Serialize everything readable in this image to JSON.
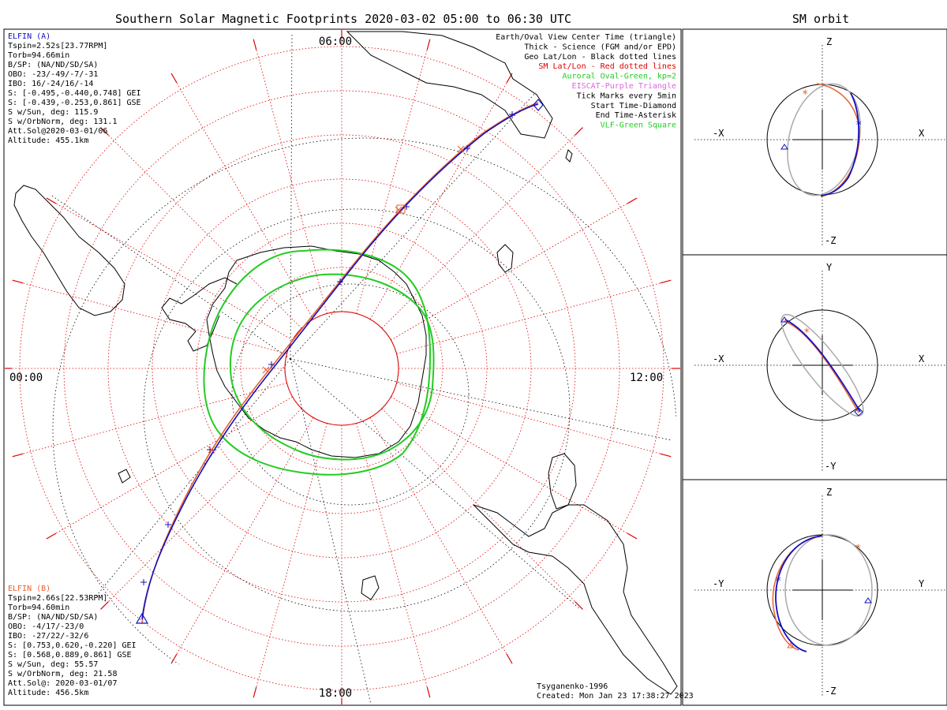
{
  "title": "Southern Solar Magnetic Footprints 2020-03-02 05:00 to 06:30 UTC",
  "orbit_title": "SM orbit",
  "map": {
    "time_labels": {
      "top": "06:00",
      "left": "00:00",
      "right": "12:00",
      "bottom": "18:00"
    },
    "legend": [
      {
        "text": "Earth/Oval View Center Time (triangle)",
        "color": "#000000"
      },
      {
        "text": "Thick - Science (FGM and/or EPD)",
        "color": "#000000"
      },
      {
        "text": "Geo Lat/Lon - Black dotted lines",
        "color": "#000000"
      },
      {
        "text": "SM Lat/Lon - Red dotted lines",
        "color": "#e00000"
      },
      {
        "text": "Auroral Oval-Green, kp=2",
        "color": "#22cc22"
      },
      {
        "text": "EISCAT-Purple Triangle",
        "color": "#dd66dd"
      },
      {
        "text": "Tick Marks every 5min",
        "color": "#000000"
      },
      {
        "text": "Start Time-Diamond",
        "color": "#000000"
      },
      {
        "text": "End Time-Asterisk",
        "color": "#000000"
      },
      {
        "text": "VLF-Green Square",
        "color": "#22cc22"
      }
    ],
    "probe_a": {
      "title": "ELFIN (A)",
      "color": "#1010c0",
      "lines": [
        "Tspin=2.52s[23.77RPM]",
        "Torb=94.66min",
        "B/SP: (NA/ND/SD/SA)",
        "OBO: -23/-49/-7/-31",
        "IBO: 16/-24/16/-14",
        "S: [-0.495,-0.440,0.748] GEI",
        "S: [-0.439,-0.253,0.861] GSE",
        "S w/Sun, deg: 115.9",
        "S w/OrbNorm, deg: 131.1",
        "Att.Sol@2020-03-01/06",
        "Altitude: 455.1km"
      ]
    },
    "probe_b": {
      "title": "ELFIN (B)",
      "color": "#e86030",
      "lines": [
        "Tspin=2.66s[22.53RPM]",
        "Torb=94.60min",
        "B/SP: (NA/ND/SD/SA)",
        "OBO: -4/17/-23/0",
        "IBO: -27/22/-32/6",
        "S: [0.753,0.620,-0.220] GEI",
        "S: [0.568,0.889,0.861] GSE",
        "S w/Sun, deg: 55.57",
        "S w/OrbNorm, deg: 21.58",
        "Att.Sol@: 2020-03-01/07",
        "Altitude: 456.5km"
      ]
    },
    "credits": [
      "Tsyganenko-1996",
      "Created: Mon Jan 23 17:38:27 2023"
    ]
  },
  "orbit_panels": [
    {
      "id": "xz",
      "top": "Z",
      "bottom": "-Z",
      "left": "-X",
      "right": "X"
    },
    {
      "id": "xy",
      "top": "Y",
      "bottom": "-Y",
      "left": "-X",
      "right": "X"
    },
    {
      "id": "yz",
      "top": "Z",
      "bottom": "-Z",
      "left": "-Y",
      "right": "Y"
    }
  ],
  "colors": {
    "probe_a": "#1010c0",
    "probe_b": "#e86030",
    "sm_grid": "#e00000",
    "oval": "#22cc22",
    "coast": "#000000",
    "orbit_gray": "#aaaaaa"
  }
}
